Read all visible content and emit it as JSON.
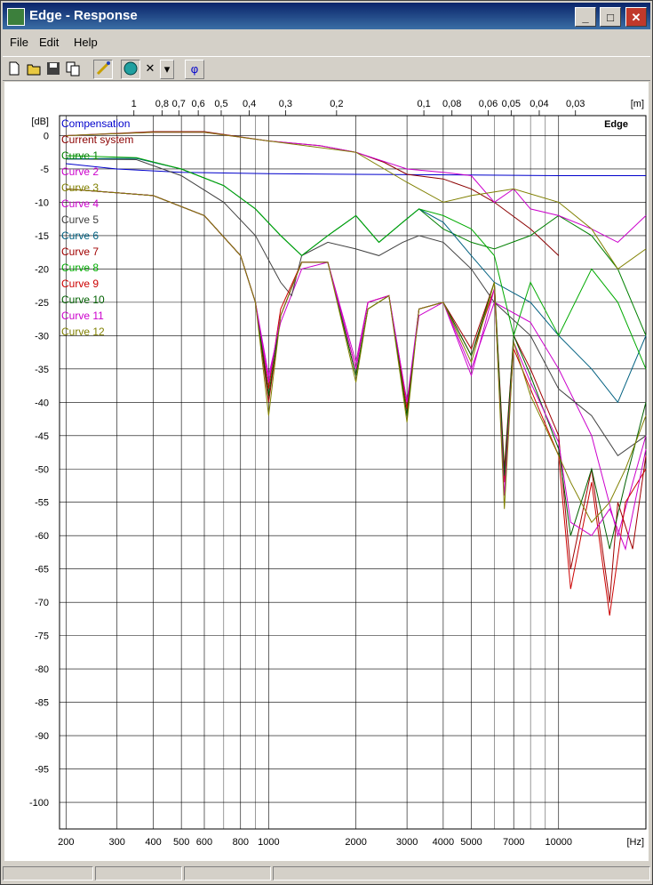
{
  "window": {
    "title": "Edge - Response",
    "min_glyph": "_",
    "max_glyph": "□",
    "close_glyph": "✕"
  },
  "menu": {
    "file": "File",
    "edit": "Edit",
    "help": "Help"
  },
  "toolbar": {
    "phase_label": "φ",
    "close_glyph": "✕",
    "dropdown_glyph": "▾"
  },
  "chart_data": {
    "type": "line",
    "watermark": "Edge",
    "y_unit": "[dB]",
    "x_unit": "[Hz]",
    "top_unit": "[m]",
    "xscale": "log",
    "xlim": [
      190,
      20000
    ],
    "ylim": [
      -104,
      3
    ],
    "grid": true,
    "legend_position": "top-left",
    "y_ticks": [
      0,
      -5,
      -10,
      -15,
      -20,
      -25,
      -30,
      -35,
      -40,
      -45,
      -50,
      -55,
      -60,
      -65,
      -70,
      -75,
      -80,
      -85,
      -90,
      -95,
      -100
    ],
    "x_ticks": [
      {
        "v": 200,
        "l": "200"
      },
      {
        "v": 300,
        "l": "300"
      },
      {
        "v": 400,
        "l": "400"
      },
      {
        "v": 500,
        "l": "500"
      },
      {
        "v": 600,
        "l": "600"
      },
      {
        "v": 800,
        "l": "800"
      },
      {
        "v": 1000,
        "l": "1000"
      },
      {
        "v": 2000,
        "l": "2000"
      },
      {
        "v": 3000,
        "l": "3000"
      },
      {
        "v": 4000,
        "l": "4000"
      },
      {
        "v": 5000,
        "l": "5000"
      },
      {
        "v": 7000,
        "l": "7000"
      },
      {
        "v": 10000,
        "l": "10000"
      }
    ],
    "x_minor": [
      700,
      900,
      6000,
      8000,
      9000,
      20000
    ],
    "top_ticks": [
      {
        "v": 1,
        "l": "1"
      },
      {
        "v": 0.8,
        "l": "0,8"
      },
      {
        "v": 0.7,
        "l": "0,7"
      },
      {
        "v": 0.6,
        "l": "0,6"
      },
      {
        "v": 0.5,
        "l": "0,5"
      },
      {
        "v": 0.4,
        "l": "0,4"
      },
      {
        "v": 0.3,
        "l": "0,3"
      },
      {
        "v": 0.2,
        "l": "0,2"
      },
      {
        "v": 0.1,
        "l": "0,1"
      },
      {
        "v": 0.08,
        "l": "0,08"
      },
      {
        "v": 0.06,
        "l": "0,06"
      },
      {
        "v": 0.05,
        "l": "0,05"
      },
      {
        "v": 0.04,
        "l": "0,04"
      },
      {
        "v": 0.03,
        "l": "0,03"
      }
    ],
    "series": [
      {
        "name": "Compensation",
        "color": "#0000cc",
        "x": [
          200,
          300,
          500,
          1000,
          2000,
          5000,
          10000,
          20000
        ],
        "y": [
          -4.2,
          -5.0,
          -5.5,
          -5.7,
          -5.8,
          -5.9,
          -6.0,
          -6.0
        ]
      },
      {
        "name": "Current system",
        "color": "#8b0000",
        "x": [
          200,
          400,
          600,
          1000,
          1500,
          2000,
          2500,
          3000,
          4000,
          5000,
          6000,
          8000,
          10000
        ],
        "y": [
          0,
          0.6,
          0.6,
          -0.8,
          -1.5,
          -2.5,
          -4,
          -5.8,
          -6.5,
          -8,
          -10,
          -14,
          -18
        ]
      },
      {
        "name": "Curve 1",
        "color": "#008000",
        "x": [
          200,
          350,
          500,
          700,
          900,
          1100,
          1300,
          1600,
          2000,
          2400,
          2900,
          3300,
          4000,
          5000,
          6000,
          8000,
          10000,
          13000,
          16000,
          20000
        ],
        "y": [
          -3.5,
          -3.4,
          -5,
          -7.5,
          -11,
          -15,
          -18,
          -15,
          -12,
          -16,
          -13,
          -11,
          -14,
          -16,
          -17,
          -15,
          -12,
          -15,
          -20,
          -30
        ]
      },
      {
        "name": "Curve 2",
        "color": "#cc00cc",
        "x": [
          200,
          400,
          600,
          1000,
          1500,
          2000,
          3000,
          4000,
          5000,
          6000,
          7000,
          8000,
          10000,
          13000,
          16000,
          20000
        ],
        "y": [
          0,
          0.5,
          0.5,
          -0.8,
          -1.5,
          -2.5,
          -5,
          -5.5,
          -6,
          -10,
          -8,
          -11,
          -12,
          -14,
          -16,
          -12
        ]
      },
      {
        "name": "Curve 3",
        "color": "#808000",
        "x": [
          200,
          400,
          600,
          1000,
          2000,
          3000,
          4000,
          5000,
          7000,
          10000,
          13000,
          16000,
          20000
        ],
        "y": [
          0,
          0.5,
          0.5,
          -0.8,
          -2.5,
          -7,
          -10,
          -9,
          -8,
          -10,
          -14,
          -20,
          -17
        ]
      },
      {
        "name": "Curve 4",
        "color": "#cc00cc",
        "x": [
          200,
          400,
          600,
          800,
          900,
          1000,
          1100,
          1300,
          1600,
          2000,
          2200,
          2600,
          3000,
          3300,
          4000,
          5000,
          6000,
          8000,
          10000,
          13000,
          16000,
          20000
        ],
        "y": [
          -8,
          -9,
          -12,
          -18,
          -25,
          -36,
          -28,
          -20,
          -19,
          -34,
          -25,
          -24,
          -40,
          -27,
          -25,
          -35,
          -25,
          -28,
          -35,
          -45,
          -60,
          -45
        ]
      },
      {
        "name": "Curve 5",
        "color": "#404040",
        "x": [
          200,
          350,
          500,
          700,
          900,
          1100,
          1200,
          1300,
          1600,
          2000,
          2400,
          2900,
          3300,
          4000,
          5000,
          6000,
          8000,
          10000,
          13000,
          16000,
          20000
        ],
        "y": [
          -3.5,
          -3.6,
          -6,
          -10,
          -15,
          -22,
          -24,
          -18,
          -16,
          -17,
          -18,
          -16,
          -15,
          -16,
          -20,
          -25,
          -30,
          -38,
          -42,
          -48,
          -45
        ]
      },
      {
        "name": "Curve 6",
        "color": "#006080",
        "x": [
          200,
          350,
          500,
          700,
          900,
          1100,
          1300,
          1600,
          2000,
          2400,
          2900,
          3300,
          4000,
          5000,
          6000,
          8000,
          10000,
          13000,
          16000,
          20000
        ],
        "y": [
          -3.5,
          -3.4,
          -5,
          -7.5,
          -11,
          -15,
          -18,
          -15,
          -12,
          -16,
          -13,
          -11,
          -13,
          -18,
          -22,
          -25,
          -30,
          -35,
          -40,
          -30
        ]
      },
      {
        "name": "Curve 7",
        "color": "#a00000",
        "x": [
          200,
          400,
          600,
          800,
          900,
          1000,
          1100,
          1300,
          1600,
          2000,
          2200,
          2600,
          3000,
          3300,
          4000,
          5000,
          6000,
          6500,
          7000,
          8000,
          10000,
          11000,
          13000,
          15000,
          16000,
          18000,
          20000
        ],
        "y": [
          -8,
          -9,
          -12,
          -18,
          -25,
          -40,
          -27,
          -19,
          -19,
          -36,
          -26,
          -24,
          -42,
          -26,
          -25,
          -32,
          -22,
          -50,
          -30,
          -35,
          -45,
          -65,
          -50,
          -70,
          -55,
          -62,
          -48
        ]
      },
      {
        "name": "Curve 8",
        "color": "#00aa00",
        "x": [
          200,
          350,
          500,
          700,
          900,
          1100,
          1300,
          1600,
          2000,
          2400,
          2900,
          3300,
          4000,
          5000,
          6000,
          7000,
          8000,
          10000,
          13000,
          16000,
          20000
        ],
        "y": [
          -3,
          -3.3,
          -5,
          -7.5,
          -11,
          -15,
          -18,
          -15,
          -12,
          -16,
          -13,
          -11,
          -12,
          -14,
          -18,
          -30,
          -22,
          -30,
          -20,
          -25,
          -35
        ]
      },
      {
        "name": "Curve 9",
        "color": "#cc0000",
        "x": [
          200,
          400,
          600,
          800,
          900,
          1000,
          1100,
          1300,
          1600,
          2000,
          2200,
          2600,
          3000,
          3300,
          4000,
          5000,
          6000,
          6500,
          7000,
          8000,
          10000,
          11000,
          13000,
          15000,
          17000,
          20000
        ],
        "y": [
          -8,
          -9,
          -12,
          -18,
          -25,
          -38,
          -26,
          -19,
          -19,
          -35,
          -25,
          -24,
          -41,
          -26,
          -25,
          -33,
          -23,
          -52,
          -32,
          -38,
          -48,
          -68,
          -52,
          -72,
          -55,
          -50
        ]
      },
      {
        "name": "Curve 10",
        "color": "#006000",
        "x": [
          200,
          400,
          600,
          800,
          900,
          1000,
          1100,
          1300,
          1600,
          2000,
          2200,
          2600,
          3000,
          3300,
          4000,
          5000,
          6000,
          6500,
          7000,
          8000,
          10000,
          11000,
          13000,
          15000,
          17000,
          20000
        ],
        "y": [
          -8,
          -9,
          -12,
          -18,
          -25,
          -39,
          -27,
          -19,
          -19,
          -36,
          -26,
          -24,
          -42,
          -26,
          -25,
          -33,
          -22,
          -51,
          -30,
          -36,
          -47,
          -60,
          -50,
          -62,
          -52,
          -40
        ]
      },
      {
        "name": "Curve 11",
        "color": "#cc00cc",
        "x": [
          200,
          400,
          600,
          800,
          900,
          1000,
          1100,
          1300,
          1600,
          2000,
          2200,
          2600,
          3000,
          3300,
          4000,
          5000,
          6000,
          6500,
          7000,
          8000,
          10000,
          11000,
          13000,
          15000,
          17000,
          20000
        ],
        "y": [
          -8,
          -9,
          -12,
          -18,
          -25,
          -37,
          -27,
          -19,
          -19,
          -35,
          -25,
          -24,
          -40,
          -26,
          -25,
          -36,
          -23,
          -54,
          -31,
          -37,
          -46,
          -58,
          -60,
          -56,
          -62,
          -47
        ]
      },
      {
        "name": "Curve 12",
        "color": "#808000",
        "x": [
          200,
          400,
          600,
          800,
          900,
          1000,
          1100,
          1300,
          1600,
          2000,
          2200,
          2600,
          3000,
          3300,
          4000,
          5000,
          6000,
          6500,
          7000,
          8000,
          10000,
          11000,
          13000,
          15000,
          17000,
          20000
        ],
        "y": [
          -8,
          -9,
          -12,
          -18,
          -25,
          -42,
          -27,
          -19,
          -19,
          -37,
          -26,
          -24,
          -43,
          -26,
          -25,
          -34,
          -22,
          -56,
          -31,
          -39,
          -48,
          -52,
          -58,
          -55,
          -50,
          -42
        ]
      }
    ]
  }
}
